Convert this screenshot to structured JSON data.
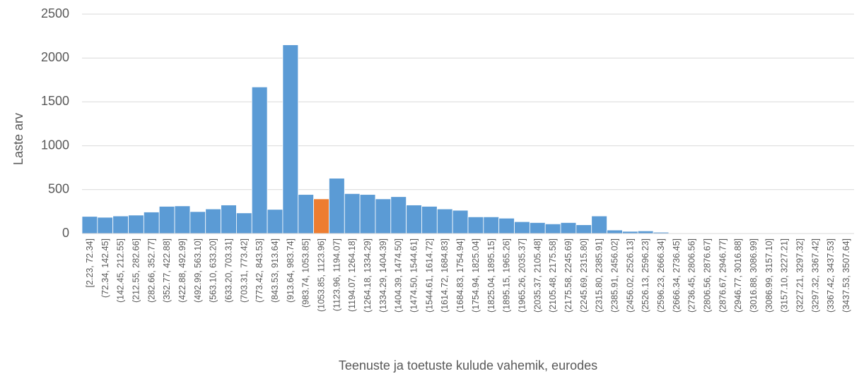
{
  "chart_data": {
    "type": "bar",
    "title": "",
    "xlabel": "Teenuste ja toetuste kulude vahemik, eurodes",
    "ylabel": "Laste arv",
    "ylim": [
      0,
      2500
    ],
    "yticks": [
      0,
      500,
      1000,
      1500,
      2000,
      2500
    ],
    "grid": "horizontal",
    "legend": "none",
    "bar_color": "#5B9BD5",
    "highlight_color": "#ED7D31",
    "highlight_index": 15,
    "categories": [
      "[2.23, 72.34]",
      "(72.34, 142.45]",
      "(142.45, 212.55]",
      "(212.55, 282.66]",
      "(282.66, 352.77]",
      "(352.77, 422.88]",
      "(422.88, 492.99]",
      "(492.99, 563.10]",
      "(563.10, 633.20]",
      "(633.20, 703.31]",
      "(703.31, 773.42]",
      "(773.42, 843.53]",
      "(843.53, 913.64]",
      "(913.64, 983.74]",
      "(983.74, 1053.85]",
      "(1053.85, 1123.96]",
      "(1123.96, 1194.07]",
      "(1194.07, 1264.18]",
      "(1264.18, 1334.29]",
      "(1334.29, 1404.39]",
      "(1404.39, 1474.50]",
      "(1474.50, 1544.61]",
      "(1544.61, 1614.72]",
      "(1614.72, 1684.83]",
      "(1684.83, 1754.94]",
      "(1754.94, 1825.04]",
      "(1825.04, 1895.15]",
      "(1895.15, 1965.26]",
      "(1965.26, 2035.37]",
      "(2035.37, 2105.48]",
      "(2105.48, 2175.58]",
      "(2175.58, 2245.69]",
      "(2245.69, 2315.80]",
      "(2315.80, 2385.91]",
      "(2385.91, 2456.02]",
      "(2456.02, 2526.13]",
      "(2526.13, 2596.23]",
      "(2596.23, 2666.34]",
      "(2666.34, 2736.45]",
      "(2736.45, 2806.56]",
      "(2806.56, 2876.67]",
      "(2876.67, 2946.77]",
      "(2946.77, 3016.88]",
      "(3016.88, 3086.99]",
      "(3086.99, 3157.10]",
      "(3157.10, 3227.21]",
      "(3227.21, 3297.32]",
      "(3297.32, 3367.42]",
      "(3367.42, 3437.53]",
      "(3437.53, 3507.64]"
    ],
    "values": [
      195,
      185,
      200,
      210,
      245,
      310,
      315,
      250,
      280,
      325,
      235,
      1670,
      275,
      2150,
      445,
      395,
      630,
      455,
      445,
      395,
      420,
      325,
      310,
      280,
      265,
      190,
      190,
      175,
      135,
      125,
      110,
      125,
      100,
      200,
      40,
      25,
      30,
      15,
      3,
      2,
      2,
      2,
      2,
      2,
      2,
      2,
      2,
      2,
      2,
      2
    ]
  }
}
